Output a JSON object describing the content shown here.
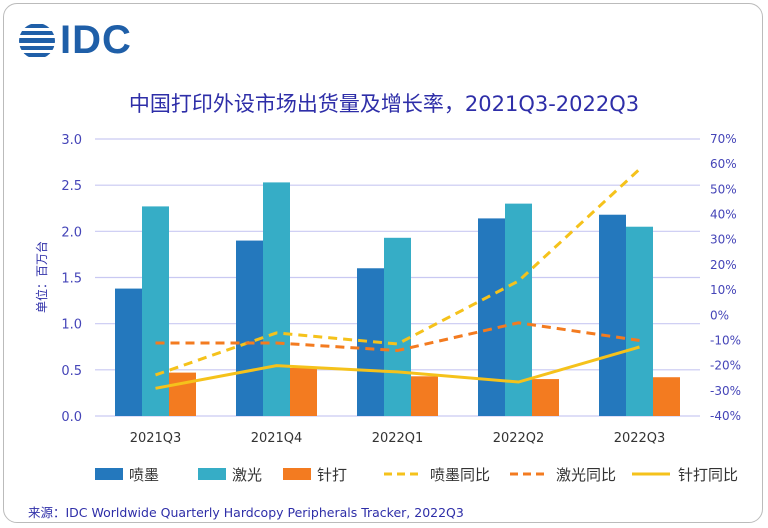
{
  "logo": "IDC",
  "source": "来源：IDC Worldwide Quarterly Hardcopy Peripherals Tracker, 2022Q3",
  "chart_data": {
    "type": "bar+line",
    "title": "中国打印外设市场出货量及增长率，2021Q3-2022Q3",
    "ylabel": "单位：百万台",
    "categories": [
      "2021Q3",
      "2021Q4",
      "2022Q1",
      "2022Q2",
      "2022Q3"
    ],
    "ylim": [
      0,
      3.0
    ],
    "yticks": [
      "0.0",
      "0.5",
      "1.0",
      "1.5",
      "2.0",
      "2.5",
      "3.0"
    ],
    "y2lim": [
      -40,
      70
    ],
    "y2ticks": [
      "-40%",
      "-30%",
      "-20%",
      "-10%",
      "0%",
      "10%",
      "20%",
      "30%",
      "40%",
      "50%",
      "60%",
      "70%"
    ],
    "grid": true,
    "legend_placement": "bottom",
    "bars": [
      {
        "name": "喷墨",
        "color": "#2478bd",
        "values": [
          1.38,
          1.9,
          1.6,
          2.14,
          2.18
        ]
      },
      {
        "name": "激光",
        "color": "#36adc6",
        "values": [
          2.27,
          2.53,
          1.93,
          2.3,
          2.05
        ]
      },
      {
        "name": "针打",
        "color": "#f37b20",
        "values": [
          0.47,
          0.52,
          0.43,
          0.4,
          0.42
        ]
      }
    ],
    "lines": [
      {
        "name": "喷墨同比",
        "color": "#f5c21b",
        "dash": true,
        "values": [
          -23.7,
          -7,
          -11.4,
          13.6,
          58
        ]
      },
      {
        "name": "激光同比",
        "color": "#f37b20",
        "dash": true,
        "values": [
          -11,
          -11,
          -14,
          -3,
          -10
        ]
      },
      {
        "name": "针打同比",
        "color": "#f5c21b",
        "dash": false,
        "values": [
          -29,
          -20,
          -22.5,
          -26.5,
          -12.6
        ]
      }
    ]
  }
}
